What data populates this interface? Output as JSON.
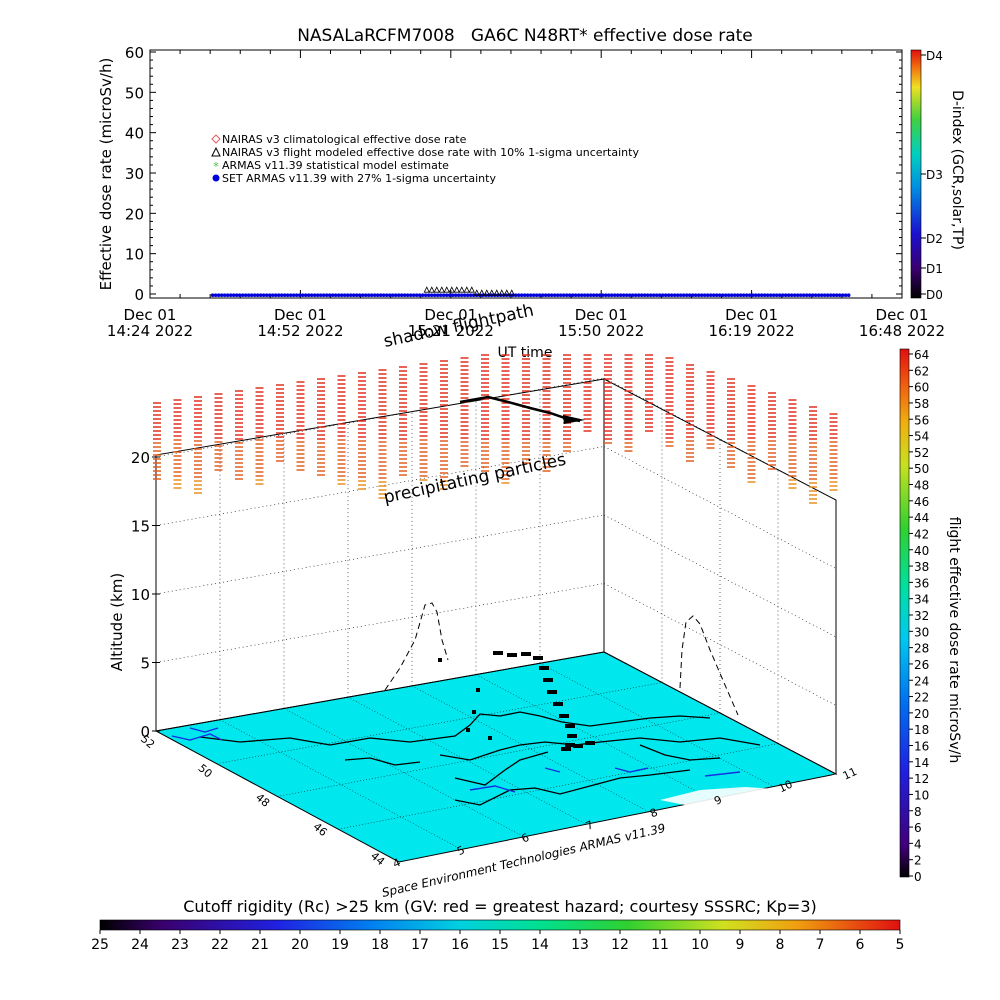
{
  "chart_data": [
    {
      "type": "scatter",
      "title": "NASALaRCFM7008   GA6C N48RT* effective dose rate",
      "ylabel": "Effective dose rate (microSv/h)",
      "xlabel": "UT time",
      "ylim": [
        0,
        60
      ],
      "y_ticks": [
        "0",
        "10",
        "20",
        "30",
        "40",
        "50",
        "60"
      ],
      "x_ticks": [
        {
          "l1": "Dec 01",
          "l2": "14:24 2022"
        },
        {
          "l1": "Dec 01",
          "l2": "14:52 2022"
        },
        {
          "l1": "Dec 01",
          "l2": "15:21 2022"
        },
        {
          "l1": "Dec 01",
          "l2": "15:50 2022"
        },
        {
          "l1": "Dec 01",
          "l2": "16:19 2022"
        },
        {
          "l1": "Dec 01",
          "l2": "16:48 2022"
        }
      ],
      "legend": [
        {
          "label": "NAIRAS v3 climatological effective dose rate",
          "color": "#e06060",
          "marker": "diamond"
        },
        {
          "label": "NAIRAS v3 flight modeled effective dose rate with 10% 1-sigma uncertainty",
          "color": "#000000",
          "marker": "triangle"
        },
        {
          "label": "ARMAS v11.39 statistical model estimate",
          "color": "#40c040",
          "marker": "star"
        },
        {
          "label": "SET ARMAS v11.39 with 27% 1-sigma uncertainty",
          "color": "#0000dd",
          "marker": "circle"
        }
      ],
      "series": [
        {
          "name": "SET ARMAS v11.39 with 27% 1-sigma uncertainty",
          "time_range": [
            "14:36",
            "16:38"
          ],
          "value": 0.2
        },
        {
          "name": "NAIRAS v3 flight modeled effective dose rate with 10% 1-sigma uncertainty",
          "time_range": [
            "15:17",
            "15:34"
          ],
          "value": 0.7
        }
      ],
      "dindex": {
        "label": "D-index (GCR,solar,TP)",
        "ticks": [
          "D0",
          "D1",
          "D2",
          "D3",
          "D4"
        ]
      }
    },
    {
      "type": "3d-scatter",
      "zlabel": "Altitude (km)",
      "z_ticks": [
        "0",
        "5",
        "10",
        "15",
        "20"
      ],
      "lat_ticks": [
        "44",
        "46",
        "48",
        "50",
        "52"
      ],
      "lon_ticks": [
        "4",
        "5",
        "6",
        "7",
        "8",
        "9",
        "10",
        "11"
      ],
      "annotations": {
        "shadow": "shadow flightpath",
        "precip": "precipitating particles",
        "credit": "Space Environment Technologies ARMAS v11.39"
      },
      "colorbar_right": {
        "label": "flight effective dose rate microSv/h",
        "ticks": [
          "0",
          "2",
          "4",
          "6",
          "8",
          "10",
          "12",
          "14",
          "16",
          "18",
          "20",
          "22",
          "24",
          "26",
          "28",
          "30",
          "32",
          "34",
          "36",
          "38",
          "40",
          "42",
          "44",
          "46",
          "48",
          "50",
          "52",
          "54",
          "56",
          "58",
          "60",
          "62",
          "64"
        ]
      },
      "colorbar_bottom": {
        "label": "Cutoff rigidity (Rc) >25 km (GV: red = greatest hazard; courtesy SSSRC; Kp=3)",
        "ticks": [
          "25",
          "24",
          "23",
          "22",
          "21",
          "20",
          "19",
          "18",
          "17",
          "16",
          "15",
          "14",
          "13",
          "12",
          "11",
          "10",
          "9",
          "8",
          "7",
          "6",
          "5"
        ]
      },
      "colors": {
        "ground": "#00e8ee",
        "coast": "#000000",
        "rivers": "#1530e0"
      }
    }
  ]
}
